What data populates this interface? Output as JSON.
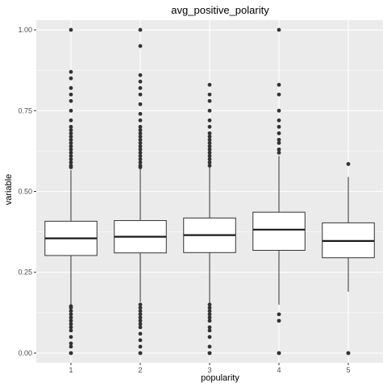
{
  "chart_data": {
    "type": "box",
    "title": "avg_positive_polarity",
    "xlabel": "popularity",
    "ylabel": "variable",
    "categories": [
      "1",
      "2",
      "3",
      "4",
      "5"
    ],
    "ylim": [
      -0.03,
      1.03
    ],
    "y_ticks": [
      0.0,
      0.25,
      0.5,
      0.75,
      1.0
    ],
    "y_tick_labels": [
      "0.00",
      "0.25",
      "0.50",
      "0.75",
      "1.00"
    ],
    "grid": true,
    "boxes": [
      {
        "category": "1",
        "whisker_low": 0.148,
        "q1": 0.302,
        "median": 0.355,
        "q3": 0.408,
        "whisker_high": 0.566,
        "outliers": [
          0.0,
          0.0,
          0.02,
          0.03,
          0.05,
          0.07,
          0.08,
          0.09,
          0.1,
          0.11,
          0.12,
          0.13,
          0.14,
          0.145,
          0.575,
          0.58,
          0.59,
          0.6,
          0.61,
          0.62,
          0.63,
          0.64,
          0.65,
          0.66,
          0.67,
          0.68,
          0.69,
          0.7,
          0.72,
          0.75,
          0.78,
          0.8,
          0.82,
          0.85,
          0.87,
          1.0
        ]
      },
      {
        "category": "2",
        "whisker_low": 0.158,
        "q1": 0.31,
        "median": 0.36,
        "q3": 0.41,
        "whisker_high": 0.57,
        "outliers": [
          0.0,
          0.0,
          0.02,
          0.04,
          0.06,
          0.08,
          0.09,
          0.1,
          0.11,
          0.12,
          0.13,
          0.14,
          0.15,
          0.575,
          0.58,
          0.59,
          0.6,
          0.61,
          0.62,
          0.63,
          0.64,
          0.65,
          0.66,
          0.67,
          0.68,
          0.69,
          0.7,
          0.72,
          0.74,
          0.77,
          0.8,
          0.82,
          0.84,
          0.86,
          0.95,
          1.0
        ]
      },
      {
        "category": "3",
        "whisker_low": 0.155,
        "q1": 0.311,
        "median": 0.365,
        "q3": 0.418,
        "whisker_high": 0.575,
        "outliers": [
          0.0,
          0.0,
          0.02,
          0.05,
          0.07,
          0.08,
          0.1,
          0.11,
          0.12,
          0.13,
          0.14,
          0.15,
          0.58,
          0.59,
          0.6,
          0.61,
          0.62,
          0.63,
          0.64,
          0.65,
          0.66,
          0.67,
          0.68,
          0.7,
          0.72,
          0.75,
          0.78,
          0.8,
          0.83
        ]
      },
      {
        "category": "4",
        "whisker_low": 0.15,
        "q1": 0.318,
        "median": 0.382,
        "q3": 0.436,
        "whisker_high": 0.61,
        "outliers": [
          0.0,
          0.0,
          0.1,
          0.12,
          0.62,
          0.63,
          0.65,
          0.66,
          0.68,
          0.7,
          0.72,
          0.75,
          0.8,
          0.83,
          1.0
        ]
      },
      {
        "category": "5",
        "whisker_low": 0.19,
        "q1": 0.295,
        "median": 0.347,
        "q3": 0.403,
        "whisker_high": 0.545,
        "outliers": [
          0.0,
          0.0,
          0.585
        ]
      }
    ],
    "colors": {
      "panel_background": "#ebebeb",
      "grid": "#ffffff",
      "box_fill": "#ffffff",
      "box_line": "#333333",
      "outlier": "#333333"
    }
  }
}
